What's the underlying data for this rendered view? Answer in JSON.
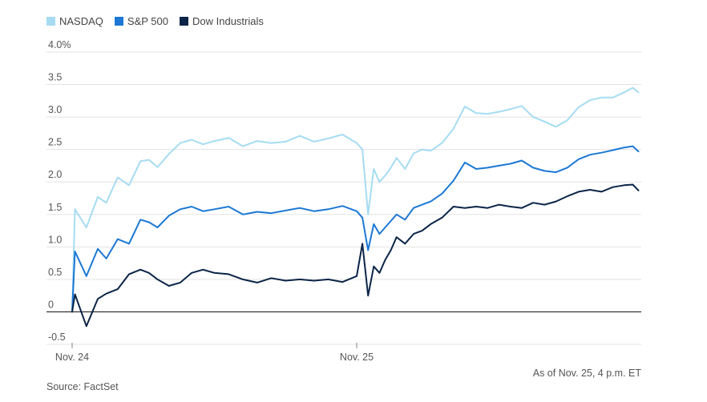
{
  "chart_data": {
    "type": "line",
    "legend_position": "top-left",
    "y_ticks": [
      "4.0%",
      "3.5",
      "3.0",
      "2.5",
      "2.0",
      "1.5",
      "1.0",
      "0.5",
      "0",
      "-0.5"
    ],
    "y_tick_values": [
      4.0,
      3.5,
      3.0,
      2.5,
      2.0,
      1.5,
      1.0,
      0.5,
      0,
      -0.5
    ],
    "ylim": [
      -0.5,
      4.0
    ],
    "x_ticks": [
      "Nov. 24",
      "Nov. 25"
    ],
    "x_tick_positions": [
      0,
      1
    ],
    "xlim": [
      0,
      1.99
    ],
    "grid": "horizontal",
    "note": "As of Nov. 25, 4 p.m. ET",
    "source": "Source: FactSet",
    "series": [
      {
        "name": "NASDAQ",
        "color": "#a6dcf2",
        "x": [
          0,
          0.01,
          0.05,
          0.09,
          0.12,
          0.16,
          0.2,
          0.24,
          0.27,
          0.3,
          0.34,
          0.38,
          0.42,
          0.46,
          0.5,
          0.55,
          0.6,
          0.65,
          0.7,
          0.75,
          0.8,
          0.85,
          0.9,
          0.95,
          1.0,
          1.02,
          1.04,
          1.06,
          1.08,
          1.1,
          1.12,
          1.14,
          1.17,
          1.2,
          1.23,
          1.26,
          1.3,
          1.34,
          1.38,
          1.42,
          1.46,
          1.5,
          1.54,
          1.58,
          1.62,
          1.66,
          1.7,
          1.74,
          1.78,
          1.82,
          1.86,
          1.9,
          1.94,
          1.97,
          1.99
        ],
        "values": [
          0,
          1.58,
          1.3,
          1.77,
          1.68,
          2.07,
          1.95,
          2.32,
          2.34,
          2.23,
          2.43,
          2.6,
          2.65,
          2.58,
          2.63,
          2.68,
          2.55,
          2.63,
          2.6,
          2.62,
          2.71,
          2.62,
          2.67,
          2.73,
          2.6,
          2.5,
          1.5,
          2.2,
          2.0,
          2.1,
          2.22,
          2.37,
          2.2,
          2.44,
          2.5,
          2.48,
          2.6,
          2.82,
          3.16,
          3.06,
          3.05,
          3.08,
          3.12,
          3.17,
          3.0,
          2.93,
          2.85,
          2.95,
          3.15,
          3.26,
          3.3,
          3.3,
          3.38,
          3.45,
          3.38
        ]
      },
      {
        "name": "S&P 500",
        "color": "#1c78d4",
        "x": [
          0,
          0.01,
          0.05,
          0.09,
          0.12,
          0.16,
          0.2,
          0.24,
          0.27,
          0.3,
          0.34,
          0.38,
          0.42,
          0.46,
          0.5,
          0.55,
          0.6,
          0.65,
          0.7,
          0.75,
          0.8,
          0.85,
          0.9,
          0.95,
          1.0,
          1.02,
          1.04,
          1.06,
          1.08,
          1.1,
          1.12,
          1.14,
          1.17,
          1.2,
          1.23,
          1.26,
          1.3,
          1.34,
          1.38,
          1.42,
          1.46,
          1.5,
          1.54,
          1.58,
          1.62,
          1.66,
          1.7,
          1.74,
          1.78,
          1.82,
          1.86,
          1.9,
          1.94,
          1.97,
          1.99
        ],
        "values": [
          0,
          0.93,
          0.55,
          0.97,
          0.82,
          1.12,
          1.05,
          1.42,
          1.38,
          1.3,
          1.48,
          1.58,
          1.62,
          1.55,
          1.58,
          1.62,
          1.5,
          1.54,
          1.52,
          1.56,
          1.6,
          1.55,
          1.58,
          1.63,
          1.55,
          1.45,
          0.95,
          1.35,
          1.2,
          1.3,
          1.4,
          1.5,
          1.42,
          1.6,
          1.65,
          1.7,
          1.82,
          2.02,
          2.3,
          2.2,
          2.22,
          2.25,
          2.28,
          2.33,
          2.22,
          2.17,
          2.15,
          2.22,
          2.35,
          2.42,
          2.45,
          2.49,
          2.53,
          2.55,
          2.47
        ]
      },
      {
        "name": "Dow Industrials",
        "color": "#0b2447",
        "x": [
          0,
          0.01,
          0.05,
          0.09,
          0.12,
          0.16,
          0.2,
          0.24,
          0.27,
          0.3,
          0.34,
          0.38,
          0.42,
          0.46,
          0.5,
          0.55,
          0.6,
          0.65,
          0.7,
          0.75,
          0.8,
          0.85,
          0.9,
          0.95,
          1.0,
          1.02,
          1.04,
          1.06,
          1.08,
          1.1,
          1.12,
          1.14,
          1.17,
          1.2,
          1.23,
          1.26,
          1.3,
          1.34,
          1.38,
          1.42,
          1.46,
          1.5,
          1.54,
          1.58,
          1.62,
          1.66,
          1.7,
          1.74,
          1.78,
          1.82,
          1.86,
          1.9,
          1.94,
          1.97,
          1.99
        ],
        "values": [
          0,
          0.27,
          -0.22,
          0.2,
          0.28,
          0.35,
          0.58,
          0.65,
          0.6,
          0.5,
          0.4,
          0.45,
          0.6,
          0.65,
          0.6,
          0.58,
          0.5,
          0.45,
          0.52,
          0.48,
          0.5,
          0.48,
          0.5,
          0.46,
          0.55,
          1.05,
          0.25,
          0.7,
          0.6,
          0.8,
          0.95,
          1.15,
          1.05,
          1.2,
          1.25,
          1.35,
          1.45,
          1.62,
          1.6,
          1.62,
          1.6,
          1.65,
          1.62,
          1.6,
          1.68,
          1.65,
          1.7,
          1.78,
          1.85,
          1.88,
          1.85,
          1.92,
          1.95,
          1.96,
          1.87
        ]
      }
    ]
  }
}
